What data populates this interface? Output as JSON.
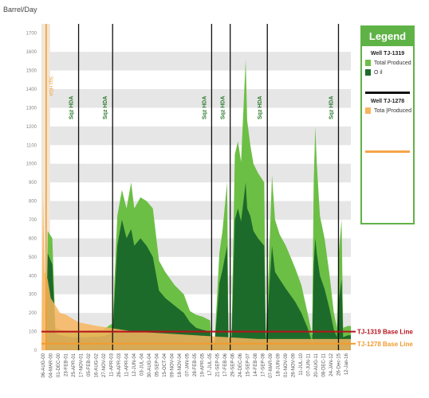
{
  "chart_data": {
    "type": "area",
    "ylabel": "Barrel/Day",
    "ylim": [
      0,
      1750
    ],
    "y_ticks": [
      0,
      100,
      200,
      300,
      400,
      500,
      600,
      700,
      800,
      900,
      1000,
      1100,
      1200,
      1300,
      1400,
      1500,
      1600,
      1700
    ],
    "x_tick_labels": [
      "06-AUG-00",
      "04-MAR-00",
      "01-DEC-00",
      "23-FEB-01",
      "25-APR-01",
      "17-NOV-01",
      "05-FEB-02",
      "16-AUG-02",
      "27-NOV-02",
      "11-APR-03",
      "26-APR-03",
      "11-APR-04",
      "12-JUN-04",
      "03-JUL-04",
      "30-AUG-04",
      "05-SEP-04",
      "15-OCT-04",
      "09-NOV-04",
      "18-NOV-04",
      "07-JAN-05",
      "28-FEB-05",
      "19-APR-05",
      "17-JUL-05",
      "21-SEP-05",
      "17-FEB-06",
      "29-SEP-06",
      "24-DEC-06",
      "15-SEP-07",
      "14-FEB-08",
      "17-SEP-08",
      "07-MAR-09",
      "18-JUN-09",
      "01-NOV-09",
      "26-NOV-09",
      "11-JUL-10",
      "07-JUN-11",
      "20-AUG-11",
      "08-DEC-11",
      "24-JAN-12",
      "26-Dec-15",
      "12-Jan-16"
    ],
    "vertical_markers": [
      {
        "label": "Sqz HDA",
        "x": 0.12
      },
      {
        "label": "Sqz HDA",
        "x": 0.23
      },
      {
        "label": "Sqz HDA",
        "x": 0.55
      },
      {
        "label": "Sqz HDA",
        "x": 0.61
      },
      {
        "label": "Sqz HDA",
        "x": 0.73
      },
      {
        "label": "Sqz HDA",
        "x": 0.96
      }
    ],
    "first_marker": {
      "label": "Sqz HDA",
      "x": 0.015
    },
    "series": [
      {
        "name": "Total Produced",
        "well": "TJ-1319",
        "color": "#6cbf45",
        "points": [
          [
            0.0,
            0
          ],
          [
            0.015,
            0
          ],
          [
            0.02,
            640
          ],
          [
            0.035,
            600
          ],
          [
            0.045,
            120
          ],
          [
            0.06,
            110
          ],
          [
            0.1,
            100
          ],
          [
            0.15,
            105
          ],
          [
            0.2,
            110
          ],
          [
            0.225,
            140
          ],
          [
            0.23,
            140
          ],
          [
            0.245,
            720
          ],
          [
            0.26,
            860
          ],
          [
            0.275,
            760
          ],
          [
            0.29,
            900
          ],
          [
            0.3,
            760
          ],
          [
            0.32,
            820
          ],
          [
            0.34,
            800
          ],
          [
            0.36,
            760
          ],
          [
            0.38,
            480
          ],
          [
            0.4,
            420
          ],
          [
            0.43,
            350
          ],
          [
            0.46,
            300
          ],
          [
            0.48,
            210
          ],
          [
            0.5,
            190
          ],
          [
            0.52,
            180
          ],
          [
            0.545,
            160
          ],
          [
            0.55,
            40
          ],
          [
            0.56,
            60
          ],
          [
            0.575,
            520
          ],
          [
            0.585,
            640
          ],
          [
            0.6,
            900
          ],
          [
            0.605,
            40
          ],
          [
            0.615,
            120
          ],
          [
            0.625,
            1050
          ],
          [
            0.635,
            1120
          ],
          [
            0.645,
            1010
          ],
          [
            0.66,
            1560
          ],
          [
            0.665,
            1230
          ],
          [
            0.675,
            1100
          ],
          [
            0.685,
            1000
          ],
          [
            0.7,
            950
          ],
          [
            0.72,
            900
          ],
          [
            0.725,
            60
          ],
          [
            0.735,
            460
          ],
          [
            0.745,
            940
          ],
          [
            0.755,
            700
          ],
          [
            0.77,
            620
          ],
          [
            0.79,
            560
          ],
          [
            0.82,
            440
          ],
          [
            0.84,
            350
          ],
          [
            0.86,
            200
          ],
          [
            0.875,
            80
          ],
          [
            0.88,
            900
          ],
          [
            0.885,
            1200
          ],
          [
            0.89,
            1000
          ],
          [
            0.9,
            720
          ],
          [
            0.915,
            600
          ],
          [
            0.93,
            420
          ],
          [
            0.945,
            200
          ],
          [
            0.955,
            120
          ],
          [
            0.96,
            500
          ],
          [
            0.97,
            700
          ],
          [
            0.975,
            120
          ],
          [
            0.99,
            130
          ],
          [
            1.0,
            130
          ]
        ]
      },
      {
        "name": "Oil",
        "well": "TJ-1319",
        "color": "#1d6b2a",
        "points": [
          [
            0.0,
            0
          ],
          [
            0.015,
            0
          ],
          [
            0.02,
            520
          ],
          [
            0.035,
            460
          ],
          [
            0.045,
            90
          ],
          [
            0.06,
            80
          ],
          [
            0.1,
            70
          ],
          [
            0.15,
            70
          ],
          [
            0.2,
            75
          ],
          [
            0.225,
            90
          ],
          [
            0.23,
            90
          ],
          [
            0.245,
            560
          ],
          [
            0.26,
            700
          ],
          [
            0.275,
            600
          ],
          [
            0.29,
            650
          ],
          [
            0.3,
            560
          ],
          [
            0.32,
            600
          ],
          [
            0.34,
            560
          ],
          [
            0.36,
            500
          ],
          [
            0.38,
            320
          ],
          [
            0.4,
            280
          ],
          [
            0.43,
            240
          ],
          [
            0.46,
            200
          ],
          [
            0.48,
            150
          ],
          [
            0.5,
            120
          ],
          [
            0.52,
            110
          ],
          [
            0.545,
            100
          ],
          [
            0.55,
            20
          ],
          [
            0.56,
            40
          ],
          [
            0.575,
            360
          ],
          [
            0.585,
            430
          ],
          [
            0.6,
            560
          ],
          [
            0.605,
            20
          ],
          [
            0.615,
            80
          ],
          [
            0.625,
            700
          ],
          [
            0.635,
            760
          ],
          [
            0.645,
            690
          ],
          [
            0.66,
            900
          ],
          [
            0.665,
            760
          ],
          [
            0.675,
            720
          ],
          [
            0.685,
            640
          ],
          [
            0.7,
            600
          ],
          [
            0.72,
            560
          ],
          [
            0.725,
            40
          ],
          [
            0.735,
            300
          ],
          [
            0.745,
            560
          ],
          [
            0.755,
            420
          ],
          [
            0.77,
            380
          ],
          [
            0.79,
            330
          ],
          [
            0.82,
            260
          ],
          [
            0.84,
            200
          ],
          [
            0.86,
            120
          ],
          [
            0.875,
            40
          ],
          [
            0.88,
            460
          ],
          [
            0.885,
            600
          ],
          [
            0.89,
            520
          ],
          [
            0.9,
            400
          ],
          [
            0.915,
            330
          ],
          [
            0.93,
            230
          ],
          [
            0.945,
            110
          ],
          [
            0.955,
            70
          ],
          [
            0.96,
            260
          ],
          [
            0.97,
            380
          ],
          [
            0.975,
            70
          ],
          [
            0.99,
            80
          ],
          [
            1.0,
            80
          ]
        ]
      },
      {
        "name": "Total Produced",
        "well": "TJ-1278",
        "color": "#f7b55e",
        "points": [
          [
            0.0,
            0
          ],
          [
            0.005,
            840
          ],
          [
            0.01,
            420
          ],
          [
            0.02,
            380
          ],
          [
            0.03,
            280
          ],
          [
            0.045,
            240
          ],
          [
            0.06,
            200
          ],
          [
            0.08,
            190
          ],
          [
            0.1,
            170
          ],
          [
            0.12,
            150
          ],
          [
            0.15,
            140
          ],
          [
            0.18,
            130
          ],
          [
            0.22,
            120
          ],
          [
            0.26,
            110
          ],
          [
            0.3,
            100
          ],
          [
            0.4,
            90
          ],
          [
            0.5,
            80
          ],
          [
            0.6,
            70
          ],
          [
            0.7,
            60
          ],
          [
            0.8,
            60
          ],
          [
            0.9,
            60
          ],
          [
            1.0,
            60
          ]
        ]
      }
    ],
    "baselines": [
      {
        "label": "TJ-1319 Base Line",
        "value": 100,
        "color": "#b5121b"
      },
      {
        "label": "TJ-1278 Base Line",
        "value": 35,
        "color": "#f29a2e"
      }
    ]
  },
  "legend": {
    "title": "Legend",
    "well_a": "Well TJ-1319",
    "well_a_total": "Total Produced",
    "well_a_oil": "O il",
    "well_b": "Well TJ-1278",
    "well_b_total": "Tota |Produced"
  },
  "colors": {
    "band": "#e6e6e6",
    "marker": "#111111"
  }
}
